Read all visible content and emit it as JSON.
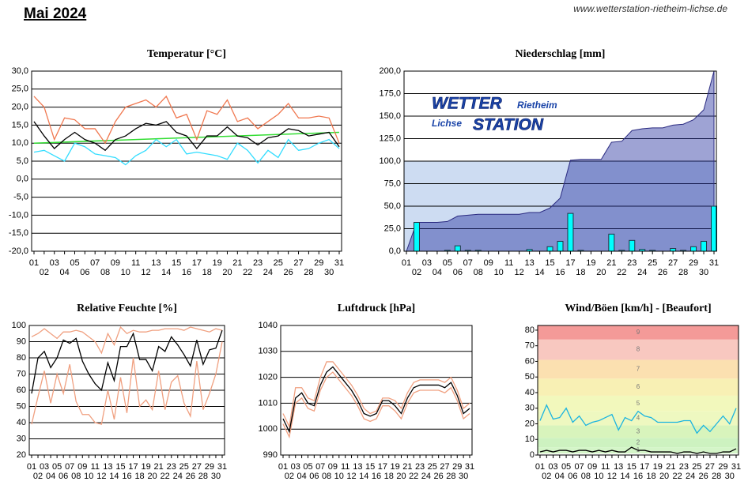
{
  "header": {
    "title": "Mai 2024",
    "url": "www.wetterstation-rietheim-lichse.de"
  },
  "logo": {
    "line1": "WETTER",
    "line1b": "Rietheim",
    "line2": "Lichse",
    "line2b": "STATION"
  },
  "chart_data": [
    {
      "type": "line",
      "title": "Temperatur [°C]",
      "categories": [
        "01",
        "02",
        "03",
        "04",
        "05",
        "06",
        "07",
        "08",
        "09",
        "10",
        "11",
        "12",
        "13",
        "14",
        "15",
        "16",
        "17",
        "18",
        "19",
        "20",
        "21",
        "22",
        "23",
        "24",
        "25",
        "26",
        "27",
        "28",
        "29",
        "30",
        "31"
      ],
      "ylim": [
        -20,
        30
      ],
      "yticks": [
        {
          "value": -20,
          "label": "-20,0"
        },
        {
          "value": -15,
          "label": "-15,0"
        },
        {
          "value": -10,
          "label": "-10,0"
        },
        {
          "value": -5,
          "label": "-5,0"
        },
        {
          "value": 0,
          "label": "0,0"
        },
        {
          "value": 5,
          "label": "5,0"
        },
        {
          "value": 10,
          "label": "10,0"
        },
        {
          "value": 15,
          "label": "15,0"
        },
        {
          "value": 20,
          "label": "20,0"
        },
        {
          "value": 25,
          "label": "25,0"
        },
        {
          "value": 30,
          "label": "30,0"
        }
      ],
      "grid": true,
      "series": [
        {
          "color": "#f07850",
          "values": [
            23,
            20,
            11,
            17,
            16.5,
            14,
            14,
            10,
            16,
            20,
            21,
            22,
            20,
            23,
            17,
            18,
            11,
            19,
            18,
            22,
            16,
            17,
            14,
            16,
            18,
            21,
            17,
            17,
            17.5,
            17,
            10
          ]
        },
        {
          "color": "#000000",
          "values": [
            16,
            12,
            8.5,
            11,
            13,
            11,
            10,
            8,
            11,
            12,
            14,
            15.5,
            15,
            16,
            13,
            12,
            8.5,
            12,
            12,
            14.5,
            12,
            11.5,
            9.5,
            11.5,
            12,
            14,
            13.5,
            12,
            12.5,
            13,
            9
          ]
        },
        {
          "color": "#33ddff",
          "values": [
            7.5,
            8,
            6.5,
            5,
            10,
            9,
            7,
            6.5,
            6,
            4,
            6.5,
            8,
            11,
            9,
            11,
            7,
            7.5,
            7,
            6.5,
            5.5,
            10,
            8,
            4.5,
            8,
            6,
            11,
            8,
            8.5,
            10,
            11,
            8.5
          ]
        }
      ],
      "trend": {
        "color": "#33dd33",
        "values": [
          10,
          13
        ]
      }
    },
    {
      "type": "bar",
      "title": "Niederschlag [mm]",
      "categories": [
        "01",
        "02",
        "03",
        "04",
        "05",
        "06",
        "07",
        "08",
        "09",
        "10",
        "11",
        "12",
        "13",
        "14",
        "15",
        "16",
        "17",
        "18",
        "19",
        "20",
        "21",
        "22",
        "23",
        "24",
        "25",
        "26",
        "27",
        "28",
        "29",
        "30",
        "31"
      ],
      "ylim": [
        0,
        200
      ],
      "yticks": [
        {
          "value": 0,
          "label": "0,0"
        },
        {
          "value": 25,
          "label": "25,0"
        },
        {
          "value": 50,
          "label": "50,0"
        },
        {
          "value": 75,
          "label": "75,0"
        },
        {
          "value": 100,
          "label": "100,0"
        },
        {
          "value": 125,
          "label": "125,0"
        },
        {
          "value": 150,
          "label": "150,0"
        },
        {
          "value": 175,
          "label": "175,0"
        },
        {
          "value": 200,
          "label": "200,0"
        }
      ],
      "grid": true,
      "color": "#00ffff",
      "cumulative_color": "rgba(40,50,160,0.45)",
      "reference_band": [
        0,
        100
      ],
      "band_color": "#cddcf2",
      "values": [
        0,
        32,
        0,
        0,
        1,
        6,
        1,
        1,
        0,
        0,
        0,
        0,
        2,
        0,
        5,
        11,
        42,
        1,
        0,
        0,
        19,
        1,
        12,
        2,
        1,
        0,
        3,
        1,
        5,
        11,
        50
      ]
    },
    {
      "type": "line",
      "title": "Relative Feuchte [%]",
      "categories": [
        "01",
        "02",
        "03",
        "04",
        "05",
        "06",
        "07",
        "08",
        "09",
        "10",
        "11",
        "12",
        "13",
        "14",
        "15",
        "16",
        "17",
        "18",
        "19",
        "20",
        "21",
        "22",
        "23",
        "24",
        "25",
        "26",
        "27",
        "28",
        "29",
        "30",
        "31"
      ],
      "ylim": [
        20,
        100
      ],
      "yticks": [
        20,
        30,
        40,
        50,
        60,
        70,
        80,
        90,
        100
      ],
      "grid": true,
      "series": [
        {
          "color": "#f0a080",
          "values": [
            93,
            95,
            98,
            95,
            92,
            96,
            96,
            97,
            96,
            93,
            90,
            83,
            95,
            88,
            99,
            95,
            97,
            96,
            96,
            97,
            97,
            98,
            98,
            98,
            97,
            99,
            98,
            97,
            96,
            98,
            97
          ]
        },
        {
          "color": "#f0a080",
          "values": [
            39,
            56,
            72,
            52,
            70,
            58,
            76,
            53,
            45,
            45,
            40,
            39,
            60,
            42,
            68,
            46,
            80,
            50,
            54,
            48,
            72,
            48,
            65,
            69,
            52,
            44,
            78,
            48,
            58,
            70,
            90
          ]
        },
        {
          "color": "#000000",
          "values": [
            58,
            80,
            84,
            74,
            80,
            91,
            89,
            92,
            78,
            70,
            64,
            60,
            77,
            66,
            87,
            87,
            95,
            79,
            79,
            72,
            87,
            84,
            93,
            88,
            82,
            75,
            91,
            76,
            85,
            86,
            97
          ]
        }
      ]
    },
    {
      "type": "line",
      "title": "Luftdruck [hPa]",
      "categories": [
        "01",
        "02",
        "03",
        "04",
        "05",
        "06",
        "07",
        "08",
        "09",
        "10",
        "11",
        "12",
        "13",
        "14",
        "15",
        "16",
        "17",
        "18",
        "19",
        "20",
        "21",
        "22",
        "23",
        "24",
        "25",
        "26",
        "27",
        "28",
        "29",
        "30",
        "31"
      ],
      "ylim": [
        990,
        1040
      ],
      "yticks": [
        990,
        1000,
        1010,
        1020,
        1030,
        1040
      ],
      "grid": true,
      "series": [
        {
          "color": "#f0a080",
          "values": [
            1006,
            1001,
            1016,
            1016,
            1012,
            1011,
            1020,
            1026,
            1026,
            1023,
            1020,
            1017,
            1013,
            1008,
            1006,
            1007,
            1012,
            1012,
            1011,
            1008,
            1014,
            1018,
            1019,
            1019,
            1019,
            1019,
            1018,
            1020,
            1015,
            1008,
            1010
          ]
        },
        {
          "color": "#f0a080",
          "values": [
            1002,
            997,
            1010,
            1012,
            1008,
            1007,
            1015,
            1020,
            1022,
            1019,
            1016,
            1013,
            1009,
            1004,
            1003,
            1004,
            1009,
            1009,
            1007,
            1004,
            1010,
            1014,
            1015,
            1015,
            1015,
            1015,
            1014,
            1016,
            1011,
            1004,
            1006
          ]
        },
        {
          "color": "#000000",
          "values": [
            1004,
            999,
            1012,
            1014,
            1010,
            1009,
            1017,
            1022,
            1024,
            1021,
            1018,
            1015,
            1011,
            1006,
            1005,
            1006,
            1011,
            1011,
            1009,
            1006,
            1012,
            1016,
            1017,
            1017,
            1017,
            1017,
            1016,
            1018,
            1013,
            1006,
            1008
          ]
        }
      ]
    },
    {
      "type": "line",
      "title": "Wind/Böen [km/h] - [Beaufort]",
      "categories": [
        "01",
        "02",
        "03",
        "04",
        "05",
        "06",
        "07",
        "08",
        "09",
        "10",
        "11",
        "12",
        "13",
        "14",
        "15",
        "16",
        "17",
        "18",
        "19",
        "20",
        "21",
        "22",
        "23",
        "24",
        "25",
        "26",
        "27",
        "28",
        "29",
        "30",
        "31"
      ],
      "ylim": [
        0,
        83
      ],
      "yticks": [
        0,
        10,
        20,
        30,
        40,
        50,
        60,
        70,
        80
      ],
      "grid": false,
      "bands": [
        {
          "label": "1",
          "from": 1,
          "to": 5,
          "color": "#d4f5c8"
        },
        {
          "label": "2",
          "from": 5,
          "to": 11,
          "color": "#cdf2c0"
        },
        {
          "label": "3",
          "from": 11,
          "to": 19,
          "color": "#d8f4bc"
        },
        {
          "label": "4",
          "from": 19,
          "to": 28,
          "color": "#eef8c0"
        },
        {
          "label": "5",
          "from": 28,
          "to": 38,
          "color": "#f2f8bc"
        },
        {
          "label": "6",
          "from": 38,
          "to": 49,
          "color": "#f8f0b4"
        },
        {
          "label": "7",
          "from": 49,
          "to": 61,
          "color": "#fbe0b0"
        },
        {
          "label": "8",
          "from": 61,
          "to": 74,
          "color": "#f8c8c0"
        },
        {
          "label": "9",
          "from": 74,
          "to": 83,
          "color": "#f49a98"
        }
      ],
      "series": [
        {
          "color": "#1ab4e0",
          "values": [
            22,
            32,
            23,
            24,
            30,
            21,
            25,
            19,
            21,
            22,
            24,
            26,
            16,
            24,
            22,
            28,
            25,
            24,
            21,
            21,
            21,
            21,
            22,
            22,
            14,
            19,
            15,
            20,
            25,
            20,
            30
          ]
        },
        {
          "color": "#000000",
          "values": [
            2,
            3,
            2,
            3,
            3,
            2,
            3,
            3,
            2,
            3,
            2,
            3,
            2,
            2,
            5,
            3,
            3,
            2,
            2,
            2,
            2,
            1,
            2,
            2,
            1,
            2,
            1,
            1,
            2,
            2,
            4
          ]
        }
      ]
    }
  ]
}
